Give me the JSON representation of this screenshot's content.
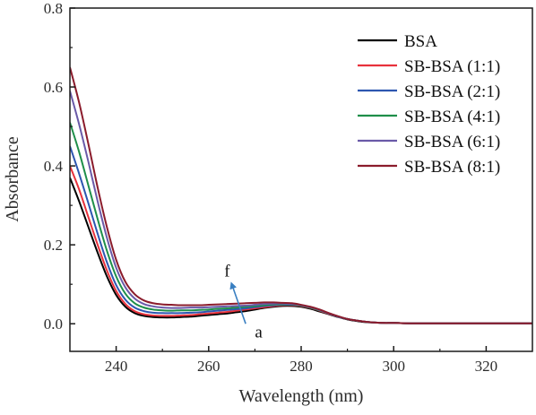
{
  "chart_data": {
    "type": "line",
    "title": "",
    "xlabel": "Wavelength (nm)",
    "ylabel": "Absorbance",
    "xlim": [
      230,
      330
    ],
    "ylim": [
      -0.07,
      0.8
    ],
    "x_ticks": [
      240,
      260,
      280,
      300,
      320
    ],
    "y_ticks": [
      0.0,
      0.2,
      0.4,
      0.6,
      0.8
    ],
    "x_tick_labels": [
      "240",
      "260",
      "280",
      "300",
      "320"
    ],
    "y_tick_labels": [
      "0.0",
      "0.2",
      "0.4",
      "0.6",
      "0.8"
    ],
    "grid": false,
    "legend_position": "top-right",
    "x": [
      230,
      232,
      234,
      236,
      238,
      240,
      242,
      244,
      246,
      248,
      250,
      252,
      254,
      256,
      258,
      260,
      262,
      264,
      266,
      268,
      270,
      272,
      274,
      276,
      278,
      280,
      282,
      284,
      286,
      288,
      290,
      292,
      294,
      296,
      298,
      300,
      304,
      308,
      312,
      316,
      320,
      324,
      328,
      330
    ],
    "series": [
      {
        "name": "BSA",
        "color": "#000000",
        "values": [
          0.37,
          0.31,
          0.245,
          0.18,
          0.12,
          0.073,
          0.043,
          0.027,
          0.02,
          0.017,
          0.016,
          0.016,
          0.017,
          0.018,
          0.02,
          0.022,
          0.024,
          0.026,
          0.029,
          0.032,
          0.036,
          0.04,
          0.043,
          0.045,
          0.045,
          0.043,
          0.038,
          0.031,
          0.024,
          0.017,
          0.011,
          0.007,
          0.004,
          0.003,
          0.002,
          0.002,
          0.001,
          0.001,
          0.001,
          0.001,
          0.001,
          0.001,
          0.001,
          0.001
        ]
      },
      {
        "name": "SB-BSA (1:1)",
        "color": "#e8323c",
        "values": [
          0.4,
          0.34,
          0.27,
          0.2,
          0.135,
          0.083,
          0.05,
          0.032,
          0.024,
          0.021,
          0.02,
          0.02,
          0.021,
          0.022,
          0.024,
          0.026,
          0.028,
          0.03,
          0.033,
          0.036,
          0.039,
          0.042,
          0.045,
          0.047,
          0.047,
          0.045,
          0.04,
          0.033,
          0.025,
          0.018,
          0.012,
          0.008,
          0.005,
          0.003,
          0.002,
          0.002,
          0.001,
          0.001,
          0.001,
          0.001,
          0.001,
          0.001,
          0.001,
          0.001
        ]
      },
      {
        "name": "SB-BSA (2:1)",
        "color": "#2d56b0",
        "values": [
          0.45,
          0.38,
          0.305,
          0.228,
          0.156,
          0.098,
          0.061,
          0.041,
          0.032,
          0.028,
          0.027,
          0.027,
          0.027,
          0.028,
          0.029,
          0.031,
          0.033,
          0.035,
          0.037,
          0.039,
          0.042,
          0.045,
          0.047,
          0.048,
          0.048,
          0.046,
          0.041,
          0.034,
          0.026,
          0.018,
          0.012,
          0.008,
          0.005,
          0.003,
          0.002,
          0.002,
          0.001,
          0.001,
          0.001,
          0.001,
          0.001,
          0.001,
          0.001,
          0.001
        ]
      },
      {
        "name": "SB-BSA (4:1)",
        "color": "#1f8f4a",
        "values": [
          0.51,
          0.435,
          0.35,
          0.265,
          0.185,
          0.12,
          0.076,
          0.052,
          0.041,
          0.036,
          0.034,
          0.033,
          0.034,
          0.034,
          0.035,
          0.036,
          0.038,
          0.039,
          0.041,
          0.043,
          0.045,
          0.047,
          0.049,
          0.049,
          0.049,
          0.046,
          0.041,
          0.034,
          0.026,
          0.018,
          0.012,
          0.008,
          0.005,
          0.003,
          0.002,
          0.002,
          0.001,
          0.001,
          0.001,
          0.001,
          0.001,
          0.001,
          0.001,
          0.001
        ]
      },
      {
        "name": "SB-BSA (6:1)",
        "color": "#6a5aa8",
        "values": [
          0.59,
          0.505,
          0.41,
          0.31,
          0.218,
          0.142,
          0.092,
          0.064,
          0.05,
          0.044,
          0.041,
          0.04,
          0.04,
          0.041,
          0.041,
          0.042,
          0.043,
          0.044,
          0.045,
          0.046,
          0.048,
          0.05,
          0.051,
          0.051,
          0.05,
          0.047,
          0.042,
          0.035,
          0.026,
          0.018,
          0.012,
          0.008,
          0.005,
          0.003,
          0.002,
          0.002,
          0.001,
          0.001,
          0.001,
          0.001,
          0.001,
          0.001,
          0.001,
          0.001
        ]
      },
      {
        "name": "SB-BSA (8:1)",
        "color": "#8b1c2c",
        "values": [
          0.65,
          0.56,
          0.455,
          0.345,
          0.245,
          0.162,
          0.106,
          0.075,
          0.059,
          0.052,
          0.049,
          0.048,
          0.047,
          0.047,
          0.047,
          0.048,
          0.049,
          0.05,
          0.051,
          0.052,
          0.053,
          0.054,
          0.054,
          0.053,
          0.052,
          0.048,
          0.043,
          0.036,
          0.027,
          0.019,
          0.012,
          0.008,
          0.005,
          0.003,
          0.002,
          0.002,
          0.001,
          0.001,
          0.001,
          0.001,
          0.001,
          0.001,
          0.001,
          0.001
        ]
      }
    ],
    "annotations": {
      "arrow_from": [
        268,
        0.0
      ],
      "arrow_to": [
        265,
        0.1
      ],
      "start_label": "a",
      "end_label": "f",
      "start_label_pos": [
        270,
        -0.035
      ],
      "end_label_pos": [
        264,
        0.12
      ]
    }
  }
}
